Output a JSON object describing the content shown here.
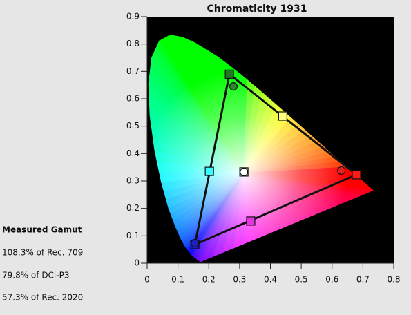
{
  "chart_data": {
    "type": "chromaticity",
    "title": "Chromaticity 1931",
    "xlim": [
      0,
      0.8
    ],
    "ylim": [
      0,
      0.9
    ],
    "xticks": [
      0,
      0.1,
      0.2,
      0.3,
      0.4,
      0.5,
      0.6,
      0.7,
      0.8
    ],
    "yticks": [
      0,
      0.1,
      0.2,
      0.3,
      0.4,
      0.5,
      0.6,
      0.7,
      0.8,
      0.9
    ],
    "background": "#000000",
    "locus": {
      "x": [
        0.1741,
        0.1714,
        0.1644,
        0.1566,
        0.144,
        0.1241,
        0.1096,
        0.0913,
        0.0687,
        0.0454,
        0.0235,
        0.0082,
        0.0039,
        0.0139,
        0.0389,
        0.0743,
        0.1142,
        0.1547,
        0.2296,
        0.3016,
        0.3731,
        0.4441,
        0.5125,
        0.5752,
        0.627,
        0.6915,
        0.719,
        0.7347
      ],
      "y": [
        0.005,
        0.0051,
        0.0109,
        0.0177,
        0.0297,
        0.0578,
        0.0868,
        0.1327,
        0.2007,
        0.295,
        0.4127,
        0.5384,
        0.6548,
        0.7502,
        0.812,
        0.8338,
        0.8262,
        0.8059,
        0.7543,
        0.6923,
        0.6245,
        0.5547,
        0.4866,
        0.4242,
        0.3725,
        0.3083,
        0.2809,
        0.2653
      ]
    },
    "series": [
      {
        "marker": "square",
        "line": true,
        "x": [
          0.679,
          0.267,
          0.155
        ],
        "y": [
          0.323,
          0.69,
          0.068
        ],
        "colors": [
          "#ff1a1a",
          "#1f7a1f",
          "#1a1acc"
        ]
      },
      {
        "marker": "square",
        "line": false,
        "x": [
          0.44,
          0.202,
          0.336,
          0.314
        ],
        "y": [
          0.537,
          0.335,
          0.154,
          0.333
        ],
        "colors": [
          "#ffff80",
          "#33ffff",
          "#e633e6",
          "#ffffff"
        ]
      },
      {
        "marker": "circle",
        "line": false,
        "x": [
          0.63,
          0.28,
          0.155,
          0.314
        ],
        "y": [
          0.338,
          0.645,
          0.073,
          0.333
        ],
        "colors": [
          "#e82020",
          "#2a8a2a",
          "#2020c0",
          "#ffffff"
        ]
      }
    ]
  },
  "gamut": {
    "title": "Measured Gamut",
    "lines": [
      "108.3% of Rec. 709",
      "79.8% of DCi-P3",
      "57.3% of Rec. 2020"
    ]
  }
}
